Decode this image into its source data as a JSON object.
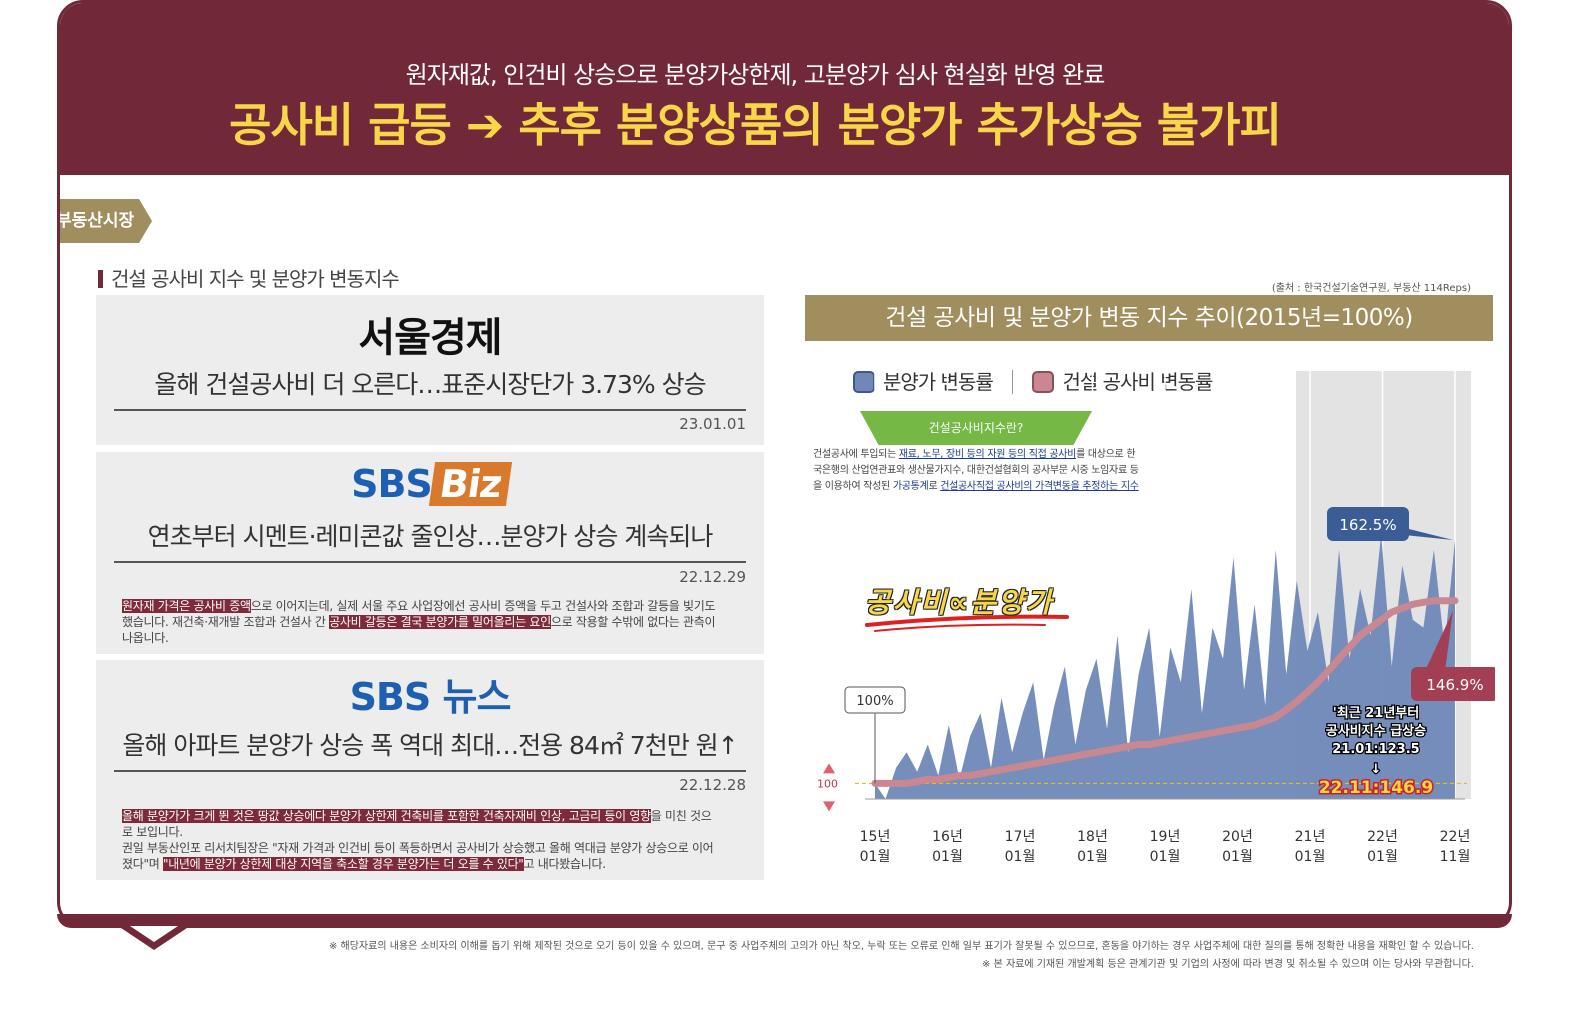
{
  "header": {
    "subtitle": "원자재값, 인건비 상승으로 분양가상한제, 고분양가 심사 현실화 반영 완료",
    "headline": "공사비 급등 ➔ 추후 분양상품의 분양가 추가상승 불가피"
  },
  "tag": "부동산시장",
  "section_title": "건설 공사비 지수 및 분양가 변동지수",
  "news": [
    {
      "logo": "서울경제",
      "title": "올해 건설공사비 더 오른다…표준시장단가 3.73% 상승",
      "date": "23.01.01"
    },
    {
      "logo_sbs": "SBS",
      "logo_suffix": "Biz",
      "title": "연초부터 시멘트·레미콘값 줄인상…분양가 상승 계속되나",
      "date": "22.12.29",
      "body_hl1": "원자재 가격은 공사비 증액",
      "body_1": "으로 이어지는데, 실제 서울 주요 사업장에선 공사비 증액을 두고 건설사와 조합과 갈등을 빚기도 했습니다. 재건축·재개발 조합과 건설사 간 ",
      "body_hl2": "공사비 갈등은 결국 분양가를 밀어올리는 요인",
      "body_2": "으로 작용할 수밖에 없다는 관측이 나옵니다."
    },
    {
      "logo_sbs": "SBS",
      "logo_suffix": "뉴스",
      "title": "올해 아파트 분양가 상승 폭 역대 최대…전용 84㎡ 7천만 원↑",
      "date": "22.12.28",
      "body_hl1": "올해 분양가가 크게 뛴 것은 땅값 상승에다 분양가 상한제 건축비를 포함한 건축자재비 인상, 고금리 등이 영향",
      "body_1": "을 미친 것으로 보입니다.",
      "body_2": "권일 부동산인포 리서치팀장은 \"자재 가격과 인건비 등이 폭등하면서 공사비가 상승했고 올해 역대급 분양가 상승으로 이어졌다\"며 ",
      "body_hl2": "\"내년에 분양가 상한제 대상 지역을 축소할 경우 분양가는 더 오를 수 있다\"",
      "body_3": "고 내다봤습니다."
    }
  ],
  "source": "(출처 : 한국건설기술연구원, 부동산 114Reps)",
  "chart_title": "건설 공사비 및 분양가 변동 지수 추이(2015년=100%)",
  "legend": {
    "series1": "분양가 변동률",
    "series2": "건설 공사비 변동률"
  },
  "colors": {
    "brand": "#71293a",
    "gold": "#a08e5e",
    "blue": "#6f88b8",
    "pink": "#c98891",
    "yellow": "#f7d64a",
    "green": "#76b845"
  },
  "info": {
    "badge": "건설공사비지수란?",
    "t1": "건설공사에 투입되는 ",
    "u1": "재료, 노무, 장비 등의 자원 등의 직접 공사비",
    "t2": "를 대상으로 한국은행의 산업연관표와 생산물가지수, 대한건설협회의 공사부문 시중 노임자료 등을 이용하여 작성된 ",
    "t3": "가공통계",
    "t4": "로 ",
    "u2": "건설공사직접 공사비의 가격변동을 추정하는 지수"
  },
  "formula": "공사비∝분양가",
  "annotations": {
    "start": "100%",
    "apt_end": "162.5%",
    "cost_end": "146.9%",
    "note_line1": "'최근 21년부터",
    "note_line2": "공사비지수 급상승",
    "note_line3": "21.01:123.5",
    "note_arrow": "↓",
    "note_value": "22.11:146.9",
    "baseline": "100"
  },
  "chart_data": {
    "type": "area",
    "x_ticks": [
      {
        "year": "15년",
        "month": "01월"
      },
      {
        "year": "16년",
        "month": "01월"
      },
      {
        "year": "17년",
        "month": "01월"
      },
      {
        "year": "18년",
        "month": "01월"
      },
      {
        "year": "19년",
        "month": "01월"
      },
      {
        "year": "20년",
        "month": "01월"
      },
      {
        "year": "21년",
        "month": "01월"
      },
      {
        "year": "22년",
        "month": "01월"
      },
      {
        "year": "22년",
        "month": "11월"
      }
    ],
    "ylim": [
      96,
      172
    ],
    "apt_price_index": [
      100,
      96,
      104,
      108,
      103,
      110,
      102,
      115,
      101,
      112,
      118,
      104,
      122,
      108,
      118,
      126,
      106,
      120,
      130,
      110,
      124,
      132,
      114,
      138,
      108,
      128,
      140,
      112,
      135,
      126,
      150,
      118,
      140,
      132,
      158,
      124,
      146,
      120,
      160,
      128,
      152,
      134,
      144,
      126,
      160,
      132,
      150,
      138,
      164,
      130,
      156,
      142,
      140,
      160,
      135,
      162.5
    ],
    "cost_index": [
      100,
      100,
      100,
      100,
      100.5,
      101,
      101,
      101.5,
      102,
      102,
      102.5,
      103,
      103.5,
      104,
      104.5,
      105,
      105.5,
      106,
      106.5,
      107,
      107.5,
      108,
      108.5,
      109,
      109.5,
      110,
      110,
      110.5,
      111,
      111.5,
      112,
      112.5,
      113,
      113.5,
      114,
      114.5,
      115,
      116,
      117,
      119,
      121,
      123.5,
      126,
      129,
      132,
      135,
      138,
      140,
      142,
      144,
      145,
      146,
      146.5,
      146.9,
      146.9,
      146.9
    ]
  },
  "footer": {
    "line1": "※ 해당자료의 내용은 소비자의 이해를 돕기 위해 제작된 것으로 오기 등이 있을 수 있으며, 문구 중 사업주체의 고의가 아닌 착오, 누락 또는 오류로 인해 일부 표기가 잘못될 수 있으므로, 혼동을 야기하는 경우 사업주체에 대한 질의를 통해 정확한 내용을 재확인 할 수 있습니다.",
    "line2": "※ 본 자료에 기재된 개발계획 등은 관계기관 및 기업의 사정에 따라 변경 및 취소될 수 있으며 이는 당사와 무관합니다."
  }
}
